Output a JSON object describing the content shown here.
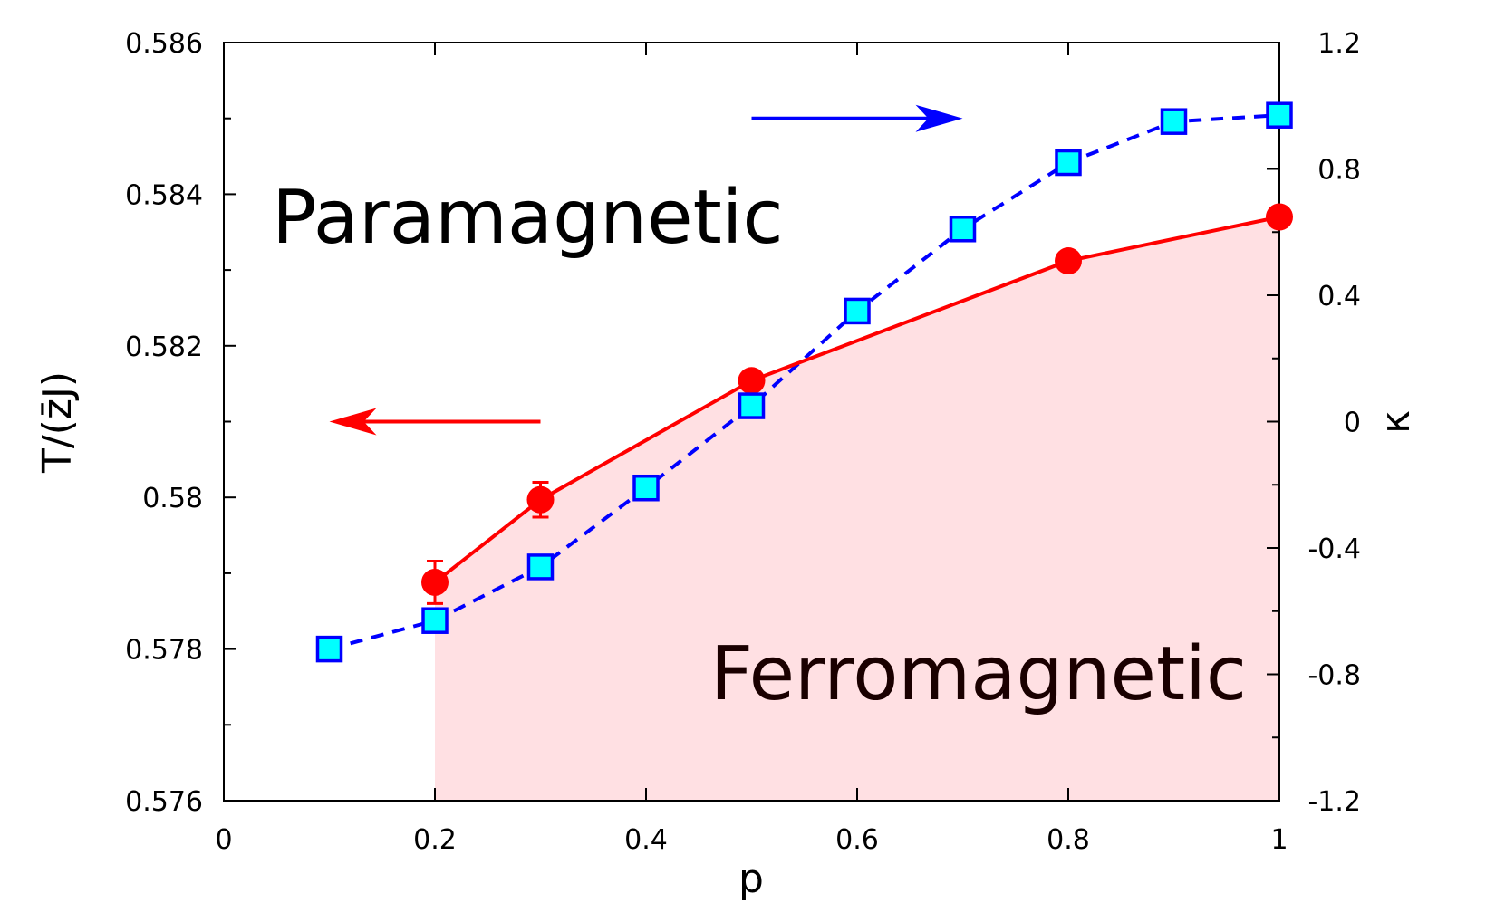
{
  "chart_data": {
    "type": "line",
    "xlabel": "p",
    "ylabel": "T/(z̄J)",
    "y2label": "κ",
    "xlim": [
      0,
      1
    ],
    "ylim": [
      0.576,
      0.586
    ],
    "y2lim": [
      -1.2,
      1.2
    ],
    "xticks": [
      "0",
      "0.2",
      "0.4",
      "0.6",
      "0.8",
      "1"
    ],
    "yticks": [
      "0.576",
      "0.578",
      "0.58",
      "0.582",
      "0.584",
      "0.586"
    ],
    "y2ticks": [
      "-1.2",
      "-0.8",
      "-0.4",
      "0",
      "0.4",
      "0.8",
      "1.2"
    ],
    "grid": false,
    "annotations": {
      "paramagnetic": "Paramagnetic",
      "ferromagnetic": "Ferromagnetic"
    },
    "series": [
      {
        "axis": "left",
        "color": "#ff0000",
        "style": "solid",
        "marker": "circle",
        "x": [
          0.2,
          0.3,
          0.5,
          0.8,
          1.0
        ],
        "y": [
          0.57888,
          0.57997,
          0.58154,
          0.58312,
          0.5837
        ],
        "yerr": [
          0.00028,
          0.00023,
          0.0001,
          0.0001,
          0.0001
        ]
      },
      {
        "axis": "right",
        "color": "#0000ff",
        "fill": "#00ffff",
        "style": "dashed",
        "marker": "square",
        "x": [
          0.1,
          0.2,
          0.3,
          0.4,
          0.5,
          0.6,
          0.7,
          0.8,
          0.9,
          1.0
        ],
        "y": [
          -0.72,
          -0.63,
          -0.46,
          -0.21,
          0.05,
          0.35,
          0.61,
          0.82,
          0.95,
          0.97
        ]
      }
    ],
    "shaded_region": {
      "label": "ferromagnetic",
      "color": "#ffe0e3",
      "x_from": 0.2
    },
    "arrows": [
      {
        "color": "#ff0000",
        "direction": "left",
        "x_from": 0.3,
        "x_to": 0.1,
        "y": 0.581
      },
      {
        "color": "#0000ff",
        "direction": "right",
        "x_from": 0.5,
        "x_to": 0.7,
        "y2": 0.96
      }
    ]
  }
}
